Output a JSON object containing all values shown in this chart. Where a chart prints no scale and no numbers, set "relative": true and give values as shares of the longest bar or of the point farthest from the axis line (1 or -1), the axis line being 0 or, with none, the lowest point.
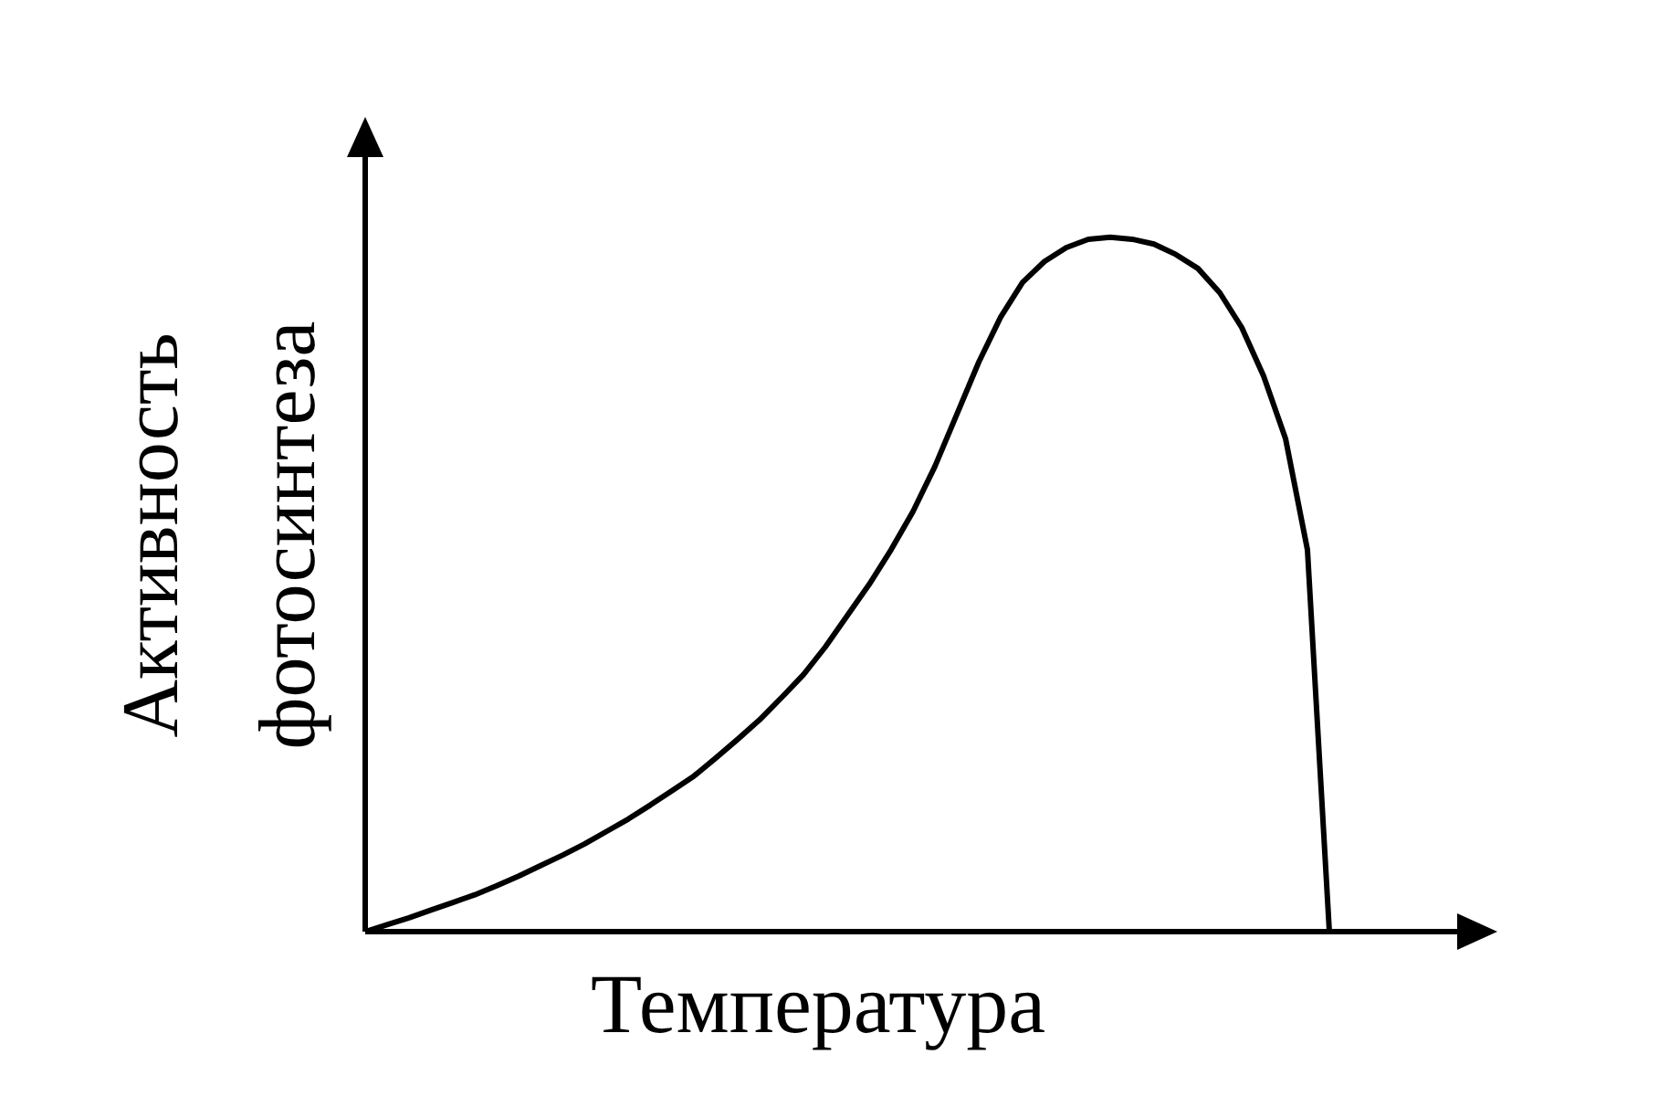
{
  "chart_data": {
    "type": "line",
    "relative": true,
    "xlabel": "Температура",
    "ylabel": "Активность\nфотосинтеза",
    "categories": [
      null,
      null,
      null,
      null,
      null,
      null,
      null,
      null,
      null,
      null,
      null,
      null,
      null,
      null,
      null,
      null,
      null,
      null,
      null,
      null,
      null,
      null,
      null,
      null,
      null,
      null,
      null,
      null,
      null,
      null,
      null,
      null,
      null,
      null,
      null,
      null,
      null,
      null,
      null,
      null,
      null,
      null,
      null,
      null,
      null
    ],
    "series": [
      {
        "color": "#000000",
        "values": [
          0,
          0.01,
          0.02,
          0.031,
          0.042,
          0.053,
          0.066,
          0.08,
          0.095,
          0.11,
          0.126,
          0.144,
          0.162,
          0.182,
          0.203,
          0.224,
          0.25,
          0.277,
          0.305,
          0.337,
          0.37,
          0.41,
          0.455,
          0.5,
          0.55,
          0.605,
          0.67,
          0.745,
          0.82,
          0.885,
          0.935,
          0.965,
          0.985,
          0.997,
          1,
          0.997,
          0.99,
          0.975,
          0.955,
          0.92,
          0.87,
          0.8,
          0.71,
          0.55,
          0
        ]
      }
    ]
  }
}
